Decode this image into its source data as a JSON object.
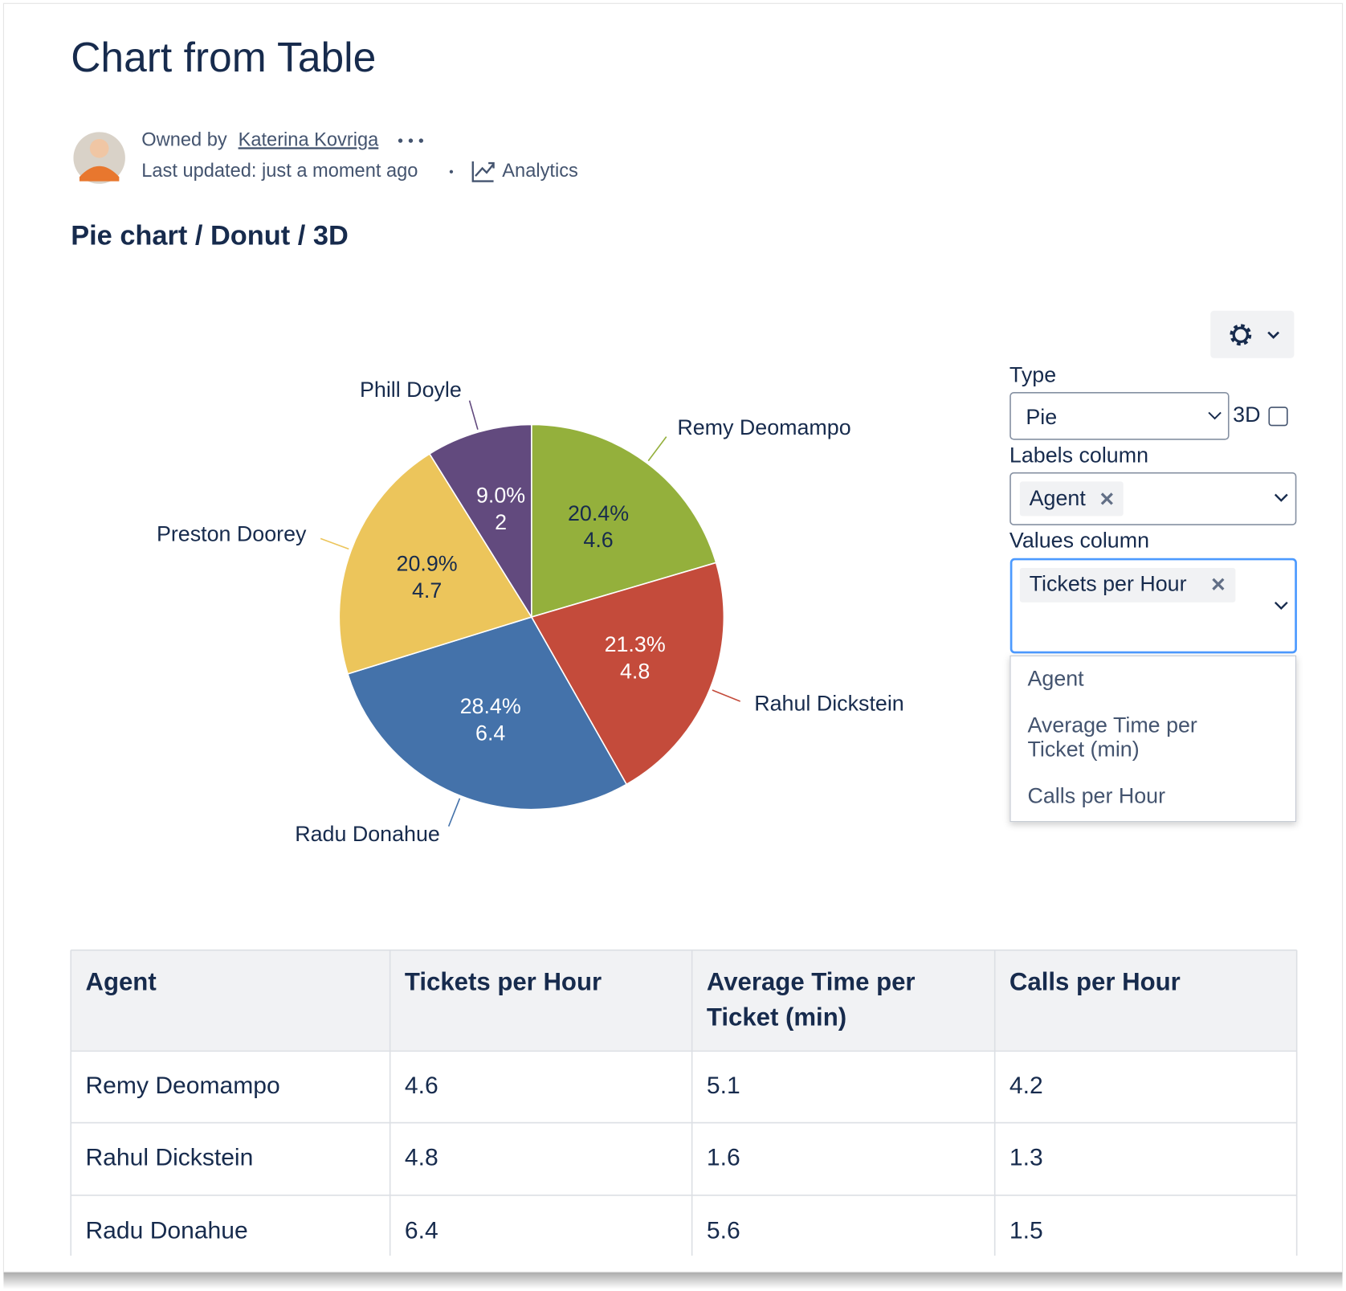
{
  "header": {
    "title": "Chart from Table",
    "owner_prefix": "Owned by",
    "owner": "Katerina Kovriga",
    "last_updated": "Last updated: just a moment ago",
    "analytics": "Analytics"
  },
  "section_title": "Pie chart / Donut / 3D",
  "chart_data": {
    "type": "pie",
    "categories": [
      "Remy Deomampo",
      "Rahul Dickstein",
      "Radu Donahue",
      "Preston Doorey",
      "Phill Doyle"
    ],
    "values": [
      4.6,
      4.8,
      6.4,
      4.7,
      2
    ],
    "percents": [
      {
        "value": 20.4,
        "label": "20.4%"
      },
      {
        "value": 21.3,
        "label": "21.3%"
      },
      {
        "value": 28.4,
        "label": "28.4%"
      },
      {
        "value": 20.9,
        "label": "20.9%"
      },
      {
        "value": 9.0,
        "label": "9.0%"
      }
    ],
    "colors": [
      "#94b03c",
      "#c44b3b",
      "#4472aa",
      "#ecc55b",
      "#624a7e"
    ]
  },
  "settings": {
    "type_label": "Type",
    "type_value": "Pie",
    "three_d": "3D",
    "labels_label": "Labels column",
    "labels_value": "Agent",
    "values_label": "Values column",
    "values_value": "Tickets per Hour",
    "options": [
      "Agent",
      "Average Time per Ticket (min)",
      "Calls per Hour"
    ]
  },
  "table": {
    "columns": [
      "Agent",
      "Tickets per Hour",
      "Average Time per Ticket (min)",
      "Calls per Hour"
    ],
    "rows": [
      [
        "Remy Deomampo",
        4.6,
        5.1,
        4.2
      ],
      [
        "Rahul Dickstein",
        4.8,
        1.6,
        1.3
      ],
      [
        "Radu Donahue",
        6.4,
        5.6,
        1.5
      ]
    ]
  }
}
